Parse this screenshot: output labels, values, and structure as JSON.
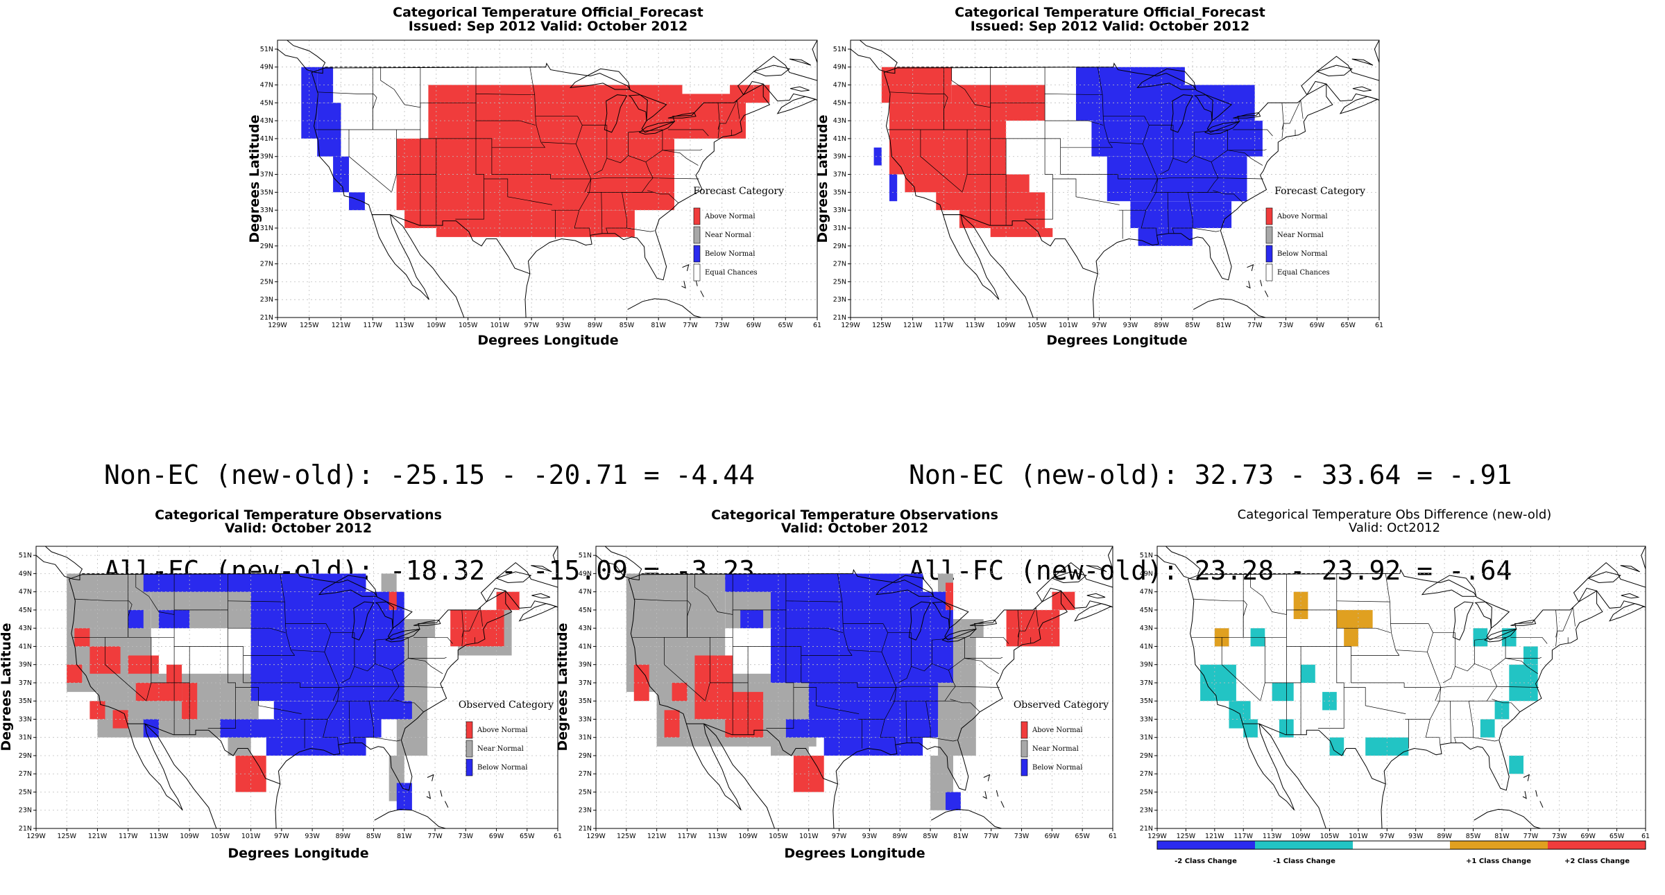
{
  "colors": {
    "above": "#f03c3c",
    "near": "#a8a8a8",
    "below": "#2a2aee",
    "cyan": "#22c4c4",
    "orange": "#e0a020",
    "grid": "#bdbdbd",
    "border": "#000000"
  },
  "lon_ticks": [
    "129W",
    "125W",
    "121W",
    "117W",
    "113W",
    "109W",
    "105W",
    "101W",
    "97W",
    "93W",
    "89W",
    "85W",
    "81W",
    "77W",
    "73W",
    "69W",
    "65W",
    "61"
  ],
  "lat_ticks": [
    "51N",
    "49N",
    "47N",
    "45N",
    "43N",
    "41N",
    "39N",
    "37N",
    "35N",
    "33N",
    "31N",
    "29N",
    "27N",
    "25N",
    "23N",
    "21N"
  ],
  "panels": {
    "fc_old": {
      "title1": "Categorical Temperature Official_Forecast",
      "title2": "Issued: Sep 2012 Valid: October 2012",
      "xlabel": "Degrees Longitude",
      "ylabel": "Degrees Latitude",
      "legend_title": "Forecast Category",
      "legend_items": [
        "Above Normal",
        "Near Normal",
        "Below Normal",
        "Equal Chances"
      ]
    },
    "fc_new": {
      "title1": "Categorical Temperature Official_Forecast",
      "title2": "Issued: Sep 2012 Valid: October 2012",
      "xlabel": "Degrees Longitude",
      "ylabel": "Degrees Latitude",
      "legend_title": "Forecast Category",
      "legend_items": [
        "Above Normal",
        "Near Normal",
        "Below Normal",
        "Equal Chances"
      ]
    },
    "obs_old": {
      "title1": "Categorical Temperature Observations",
      "title2": "Valid: October 2012",
      "xlabel": "Degrees Longitude",
      "ylabel": "Degrees Latitude",
      "legend_title": "Observed Category",
      "legend_items": [
        "Above Normal",
        "Near Normal",
        "Below Normal"
      ]
    },
    "obs_new": {
      "title1": "Categorical Temperature Observations",
      "title2": "Valid: October 2012",
      "xlabel": "Degrees Longitude",
      "ylabel": "Degrees Latitude",
      "legend_title": "Observed Category",
      "legend_items": [
        "Above Normal",
        "Near Normal",
        "Below Normal"
      ]
    },
    "diff": {
      "title1": "Categorical Temperature Obs Difference (new-old)",
      "title2": "Valid: Oct2012",
      "colorbar_labels": [
        "-2 Class Change",
        "-1 Class Change",
        "+1 Class Change",
        "+2 Class Change"
      ]
    }
  },
  "stats": {
    "left_line1": "Non-EC (new-old): -25.15 - -20.71 = -4.44",
    "left_line2": "All-FC (new-old): -18.32 - -15.09 = -3.23",
    "right_line1": "Non-EC (new-old): 32.73 - 33.64 = -.91",
    "right_line2": "All-FC (new-old): 23.28 - 23.92 = -.64"
  },
  "regions": {
    "fc_old": [
      {
        "cat": "below",
        "cells": [
          [
            -126,
            -124,
            41,
            49
          ],
          [
            -124,
            -122,
            45,
            49
          ],
          [
            -124,
            -121,
            39,
            45
          ],
          [
            -122,
            -120,
            35,
            39
          ],
          [
            -120,
            -118,
            33,
            35
          ]
        ]
      },
      {
        "cat": "above",
        "cells": [
          [
            -110,
            -78,
            41,
            47
          ],
          [
            -78,
            -70,
            41,
            46
          ],
          [
            -72,
            -67,
            45,
            47
          ],
          [
            -114,
            -79,
            33,
            41
          ],
          [
            -113,
            -84,
            31,
            33
          ],
          [
            -109,
            -84,
            30,
            31
          ]
        ]
      }
    ],
    "fc_new": [
      {
        "cat": "above",
        "cells": [
          [
            -125,
            -116,
            45,
            49
          ],
          [
            -116,
            -104,
            43,
            47
          ],
          [
            -124,
            -109,
            37,
            45
          ],
          [
            -122,
            -106,
            35,
            37
          ],
          [
            -124,
            -122,
            37,
            39
          ],
          [
            -118,
            -104,
            33,
            35
          ],
          [
            -115,
            -104,
            31,
            33
          ],
          [
            -111,
            -103,
            30,
            31
          ]
        ]
      },
      {
        "cat": "below",
        "cells": [
          [
            -126,
            -125,
            38,
            40
          ],
          [
            -124,
            -123,
            34,
            37
          ],
          [
            -100,
            -86,
            47,
            49
          ],
          [
            -100,
            -77,
            43,
            47
          ],
          [
            -98,
            -76,
            39,
            43
          ],
          [
            -96,
            -78,
            34,
            39
          ],
          [
            -93,
            -80,
            31,
            34
          ],
          [
            -92,
            -85,
            29,
            31
          ]
        ]
      }
    ],
    "obs_old": [
      {
        "cat": "near",
        "cells": [
          [
            -125,
            -114,
            36,
            49
          ],
          [
            -121,
            -100,
            31,
            38
          ],
          [
            -114,
            -101,
            43,
            49
          ],
          [
            -104,
            -101,
            29,
            31
          ],
          [
            -82,
            -78,
            29,
            42
          ],
          [
            -83,
            -81,
            24,
            29
          ],
          [
            -82,
            -77,
            42,
            44
          ],
          [
            -84,
            -82,
            46,
            49
          ],
          [
            -74,
            -67,
            40,
            45
          ]
        ]
      },
      {
        "cat": "below",
        "cells": [
          [
            -115,
            -86,
            47,
            49
          ],
          [
            -101,
            -81,
            35,
            47
          ],
          [
            -98,
            -80,
            33,
            35
          ],
          [
            -105,
            -84,
            31,
            33
          ],
          [
            -99,
            -86,
            29,
            31
          ],
          [
            -82,
            -80,
            23,
            26
          ],
          [
            -115,
            -113,
            31,
            33
          ],
          [
            -117,
            -115,
            43,
            45
          ],
          [
            -113,
            -109,
            43,
            45
          ]
        ]
      },
      {
        "cat": "above",
        "cells": [
          [
            -125,
            -123,
            37,
            39
          ],
          [
            -124,
            -122,
            41,
            43
          ],
          [
            -122,
            -118,
            38,
            41
          ],
          [
            -117,
            -113,
            38,
            40
          ],
          [
            -116,
            -112,
            35,
            37
          ],
          [
            -112,
            -110,
            35,
            39
          ],
          [
            -110,
            -108,
            33,
            37
          ],
          [
            -122,
            -120,
            33,
            35
          ],
          [
            -119,
            -117,
            32,
            34
          ],
          [
            -75,
            -68,
            41,
            45
          ],
          [
            -69,
            -66,
            45,
            47
          ],
          [
            -83,
            -82,
            45,
            47
          ],
          [
            -103,
            -99,
            25,
            29
          ]
        ]
      }
    ],
    "obs_new": [
      {
        "cat": "near",
        "cells": [
          [
            -125,
            -112,
            36,
            49
          ],
          [
            -121,
            -100,
            30,
            38
          ],
          [
            -112,
            -106,
            43,
            49
          ],
          [
            -106,
            -101,
            29,
            31
          ],
          [
            -84,
            -79,
            29,
            42
          ],
          [
            -85,
            -82,
            23,
            29
          ],
          [
            -82,
            -78,
            42,
            44
          ],
          [
            -84,
            -82,
            46,
            49
          ]
        ]
      },
      {
        "cat": "below",
        "cells": [
          [
            -112,
            -86,
            47,
            49
          ],
          [
            -106,
            -82,
            37,
            47
          ],
          [
            -101,
            -84,
            33,
            37
          ],
          [
            -104,
            -84,
            31,
            33
          ],
          [
            -99,
            -86,
            29,
            31
          ],
          [
            -83,
            -81,
            23,
            25
          ],
          [
            -110,
            -107,
            43,
            45
          ]
        ]
      },
      {
        "cat": "above",
        "cells": [
          [
            -124,
            -122,
            35,
            39
          ],
          [
            -119,
            -117,
            35,
            37
          ],
          [
            -116,
            -111,
            33,
            40
          ],
          [
            -112,
            -107,
            31,
            36
          ],
          [
            -120,
            -118,
            31,
            34
          ],
          [
            -75,
            -68,
            41,
            45
          ],
          [
            -69,
            -66,
            45,
            47
          ],
          [
            -83,
            -82,
            45,
            48
          ],
          [
            -103,
            -99,
            25,
            29
          ]
        ]
      }
    ],
    "diff": [
      {
        "cat": "cyan",
        "cells": [
          [
            -123,
            -118,
            35,
            39
          ],
          [
            -119,
            -116,
            32,
            35
          ],
          [
            -117,
            -115,
            31,
            33
          ],
          [
            -116,
            -114,
            41,
            43
          ],
          [
            -113,
            -110,
            35,
            37
          ],
          [
            -112,
            -110,
            31,
            33
          ],
          [
            -109,
            -107,
            37,
            39
          ],
          [
            -106,
            -104,
            34,
            36
          ],
          [
            -105,
            -103,
            29,
            31
          ],
          [
            -100,
            -94,
            29,
            31
          ],
          [
            -85,
            -83,
            41,
            43
          ],
          [
            -81,
            -79,
            41,
            43
          ],
          [
            -80,
            -76,
            35,
            39
          ],
          [
            -82,
            -80,
            33,
            35
          ],
          [
            -84,
            -82,
            31,
            33
          ],
          [
            -80,
            -78,
            27,
            29
          ],
          [
            -78,
            -76,
            39,
            41
          ]
        ]
      },
      {
        "cat": "orange",
        "cells": [
          [
            -121,
            -119,
            41,
            43
          ],
          [
            -110,
            -108,
            44,
            47
          ],
          [
            -104,
            -99,
            43,
            45
          ],
          [
            -103,
            -101,
            41,
            43
          ]
        ]
      }
    ]
  }
}
